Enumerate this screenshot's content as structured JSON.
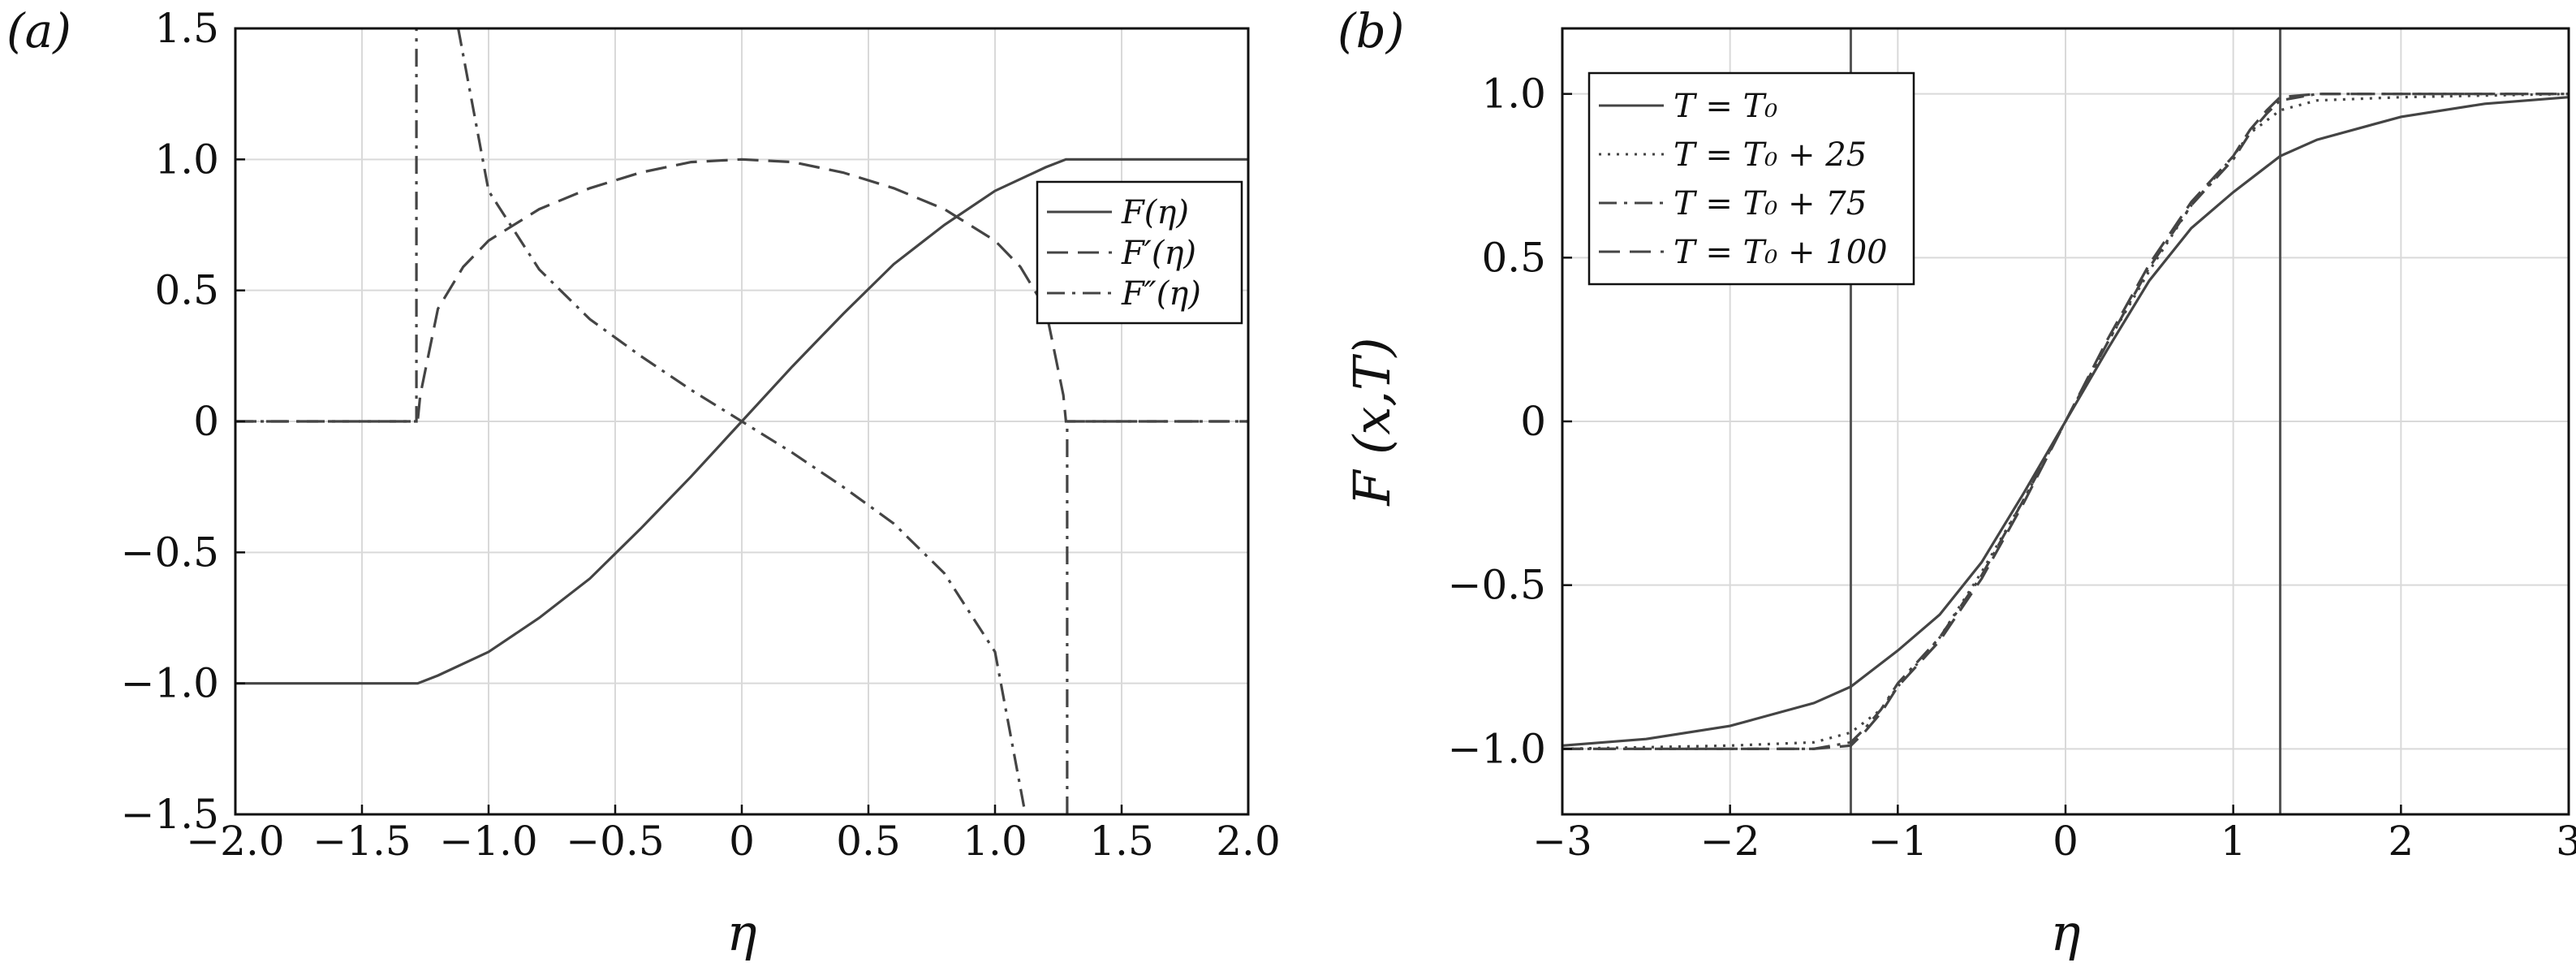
{
  "chart_data": [
    {
      "type": "line",
      "panel_label": "(a)",
      "xlabel": "η",
      "ylabel": "",
      "xlim": [
        -2.0,
        2.0
      ],
      "ylim": [
        -1.5,
        1.5
      ],
      "xticks": [
        "−2.0",
        "−1.5",
        "−1.0",
        "−0.5",
        "0",
        "0.5",
        "1.0",
        "1.5",
        "2.0"
      ],
      "yticks": [
        "−1.5",
        "−1.0",
        "−0.5",
        "0",
        "0.5",
        "1.0",
        "1.5"
      ],
      "grid": true,
      "legend_position": "right",
      "series": [
        {
          "name": "F(η)",
          "style": "solid",
          "x": [
            -2.0,
            -1.28,
            -1.2,
            -1.0,
            -0.8,
            -0.6,
            -0.4,
            -0.2,
            0.0,
            0.2,
            0.4,
            0.6,
            0.8,
            1.0,
            1.2,
            1.28,
            2.0
          ],
          "y": [
            -1.0,
            -1.0,
            -0.97,
            -0.88,
            -0.75,
            -0.6,
            -0.41,
            -0.21,
            0.0,
            0.21,
            0.41,
            0.6,
            0.75,
            0.88,
            0.97,
            1.0,
            1.0
          ]
        },
        {
          "name": "F′(η)",
          "style": "dashed",
          "x": [
            -2.0,
            -1.28,
            -1.27,
            -1.2,
            -1.1,
            -1.0,
            -0.8,
            -0.6,
            -0.4,
            -0.2,
            0.0,
            0.2,
            0.4,
            0.6,
            0.8,
            1.0,
            1.1,
            1.2,
            1.27,
            1.28,
            2.0
          ],
          "y": [
            0.0,
            0.0,
            0.1,
            0.43,
            0.59,
            0.69,
            0.81,
            0.89,
            0.95,
            0.99,
            1.0,
            0.99,
            0.95,
            0.89,
            0.81,
            0.69,
            0.59,
            0.43,
            0.1,
            0.0,
            0.0
          ]
        },
        {
          "name": "F″(η)",
          "style": "dash-dot",
          "x": [
            -2.0,
            -1.285,
            -1.285,
            null,
            -1.12,
            -1.0,
            -0.8,
            -0.6,
            -0.4,
            -0.2,
            0.0,
            0.2,
            0.4,
            0.6,
            0.8,
            1.0,
            1.12,
            null,
            1.285,
            1.285,
            2.0
          ],
          "y": [
            0.0,
            0.0,
            1.5,
            null,
            1.5,
            0.88,
            0.58,
            0.39,
            0.25,
            0.12,
            0.0,
            -0.12,
            -0.25,
            -0.39,
            -0.58,
            -0.88,
            -1.5,
            null,
            -1.5,
            0.0,
            0.0
          ]
        }
      ]
    },
    {
      "type": "line",
      "panel_label": "(b)",
      "xlabel": "η",
      "ylabel": "F (x,T)",
      "xlim": [
        -3,
        3
      ],
      "ylim": [
        -1.2,
        1.2
      ],
      "xticks": [
        "−3",
        "−2",
        "−1",
        "0",
        "1",
        "2",
        "3"
      ],
      "yticks": [
        "−1.0",
        "−0.5",
        "0",
        "0.5",
        "1.0"
      ],
      "grid": true,
      "legend_position": "top-left",
      "vertical_lines_x": [
        -1.28,
        1.28
      ],
      "series": [
        {
          "name": "T = T₀",
          "style": "solid",
          "x": [
            -3.0,
            -2.5,
            -2.0,
            -1.5,
            -1.28,
            -1.0,
            -0.75,
            -0.5,
            -0.25,
            0.0,
            0.25,
            0.5,
            0.75,
            1.0,
            1.28,
            1.5,
            2.0,
            2.5,
            3.0
          ],
          "y": [
            -0.99,
            -0.97,
            -0.93,
            -0.86,
            -0.81,
            -0.7,
            -0.59,
            -0.43,
            -0.22,
            0.0,
            0.22,
            0.43,
            0.59,
            0.7,
            0.81,
            0.86,
            0.93,
            0.97,
            0.99
          ]
        },
        {
          "name": "T = T₀ + 25",
          "style": "dotted",
          "x": [
            -3.0,
            -2.0,
            -1.5,
            -1.28,
            -1.1,
            -1.0,
            -0.75,
            -0.5,
            -0.25,
            0.0,
            0.25,
            0.5,
            0.75,
            1.0,
            1.1,
            1.28,
            1.5,
            2.0,
            3.0
          ],
          "y": [
            -1.0,
            -0.99,
            -0.98,
            -0.95,
            -0.88,
            -0.81,
            -0.66,
            -0.46,
            -0.24,
            0.0,
            0.24,
            0.46,
            0.66,
            0.81,
            0.88,
            0.95,
            0.98,
            0.99,
            1.0
          ]
        },
        {
          "name": "T = T₀ + 75",
          "style": "dash-dot",
          "x": [
            -3.0,
            -1.5,
            -1.28,
            -1.2,
            -1.1,
            -1.0,
            -0.75,
            -0.5,
            -0.25,
            0.0,
            0.25,
            0.5,
            0.75,
            1.0,
            1.1,
            1.2,
            1.28,
            1.5,
            3.0
          ],
          "y": [
            -1.0,
            -1.0,
            -0.98,
            -0.94,
            -0.88,
            -0.8,
            -0.66,
            -0.47,
            -0.24,
            0.0,
            0.24,
            0.47,
            0.66,
            0.8,
            0.88,
            0.94,
            0.98,
            1.0,
            1.0
          ]
        },
        {
          "name": "T = T₀ + 100",
          "style": "dashed",
          "x": [
            -3.0,
            -1.5,
            -1.28,
            -1.2,
            -1.1,
            -1.0,
            -0.75,
            -0.5,
            -0.25,
            0.0,
            0.25,
            0.5,
            0.75,
            1.0,
            1.1,
            1.2,
            1.28,
            1.5,
            3.0
          ],
          "y": [
            -1.0,
            -1.0,
            -0.99,
            -0.95,
            -0.89,
            -0.81,
            -0.67,
            -0.48,
            -0.25,
            0.0,
            0.25,
            0.48,
            0.67,
            0.81,
            0.89,
            0.95,
            0.99,
            1.0,
            1.0
          ]
        }
      ]
    }
  ]
}
